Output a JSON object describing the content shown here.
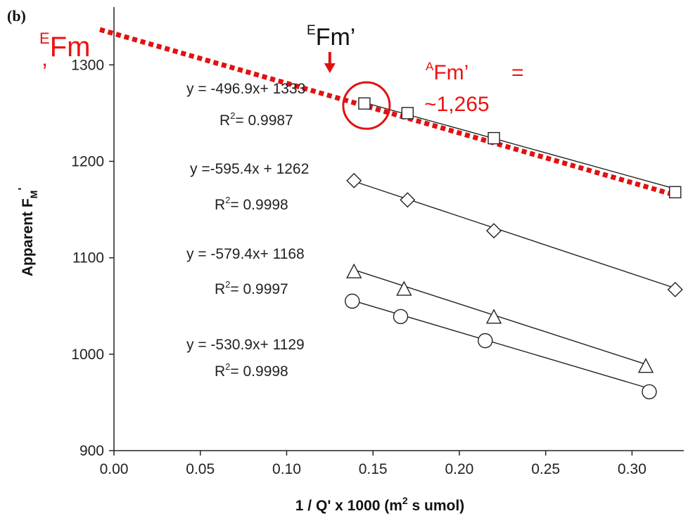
{
  "panel_label": "(b)",
  "chart_data": {
    "type": "scatter",
    "xlabel": "1 / Q' x 1000 (m",
    "xlabel_sup": "2",
    "xlabel_tail": " s umol)",
    "ylabel": "Apparent F",
    "ylabel_sub": "M",
    "ylabel_sup": "'",
    "xlim": [
      0.0,
      0.33
    ],
    "ylim": [
      900,
      1360
    ],
    "xticks": [
      "0.00",
      "0.05",
      "0.10",
      "0.15",
      "0.20",
      "0.25",
      "0.30"
    ],
    "yticks": [
      "900",
      "1000",
      "1100",
      "1200",
      "1300"
    ],
    "grid": false,
    "series": [
      {
        "marker": "square",
        "points": [
          [
            0.145,
            1260
          ],
          [
            0.17,
            1250
          ],
          [
            0.22,
            1224
          ],
          [
            0.325,
            1168
          ]
        ],
        "slope": -496.9,
        "intercept": 1333,
        "fit_x": [
          0.145,
          0.325
        ],
        "equation": "y = -496.9x+ 1333",
        "r2_label": "R",
        "r2_sup": "2",
        "r2_value": "= 0.9987"
      },
      {
        "marker": "diamond",
        "points": [
          [
            0.139,
            1180
          ],
          [
            0.17,
            1160
          ],
          [
            0.22,
            1128
          ],
          [
            0.325,
            1067
          ]
        ],
        "slope": -595.4,
        "intercept": 1262,
        "fit_x": [
          0.139,
          0.325
        ],
        "equation": "y =-595.4x + 1262",
        "r2_label": "R",
        "r2_sup": "2",
        "r2_value": "= 0.9998"
      },
      {
        "marker": "triangle",
        "points": [
          [
            0.139,
            1085
          ],
          [
            0.168,
            1067
          ],
          [
            0.22,
            1038
          ],
          [
            0.308,
            987
          ]
        ],
        "slope": -579.4,
        "intercept": 1168,
        "fit_x": [
          0.139,
          0.308
        ],
        "equation": "y = -579.4x+ 1168",
        "r2_label": "R",
        "r2_sup": "2",
        "r2_value": "= 0.9997"
      },
      {
        "marker": "circle",
        "points": [
          [
            0.138,
            1055
          ],
          [
            0.166,
            1039
          ],
          [
            0.215,
            1014
          ],
          [
            0.31,
            961
          ]
        ],
        "slope": -530.9,
        "intercept": 1129,
        "fit_x": [
          0.138,
          0.31
        ],
        "equation": "y = -530.9x+ 1129",
        "r2_label": "R",
        "r2_sup": "2",
        "r2_value": "= 0.9998"
      }
    ],
    "annotations": {
      "efm_prime": {
        "sup": "E",
        "text": "Fm’"
      },
      "efm_left": {
        "sup": "E",
        "text": "Fm",
        "tail": "’"
      },
      "afm": {
        "sup": "A",
        "text": "Fm’",
        "eq": "=",
        "value": "~1,265"
      },
      "extrapolation": {
        "x": [
          0.0,
          0.325
        ],
        "y": [
          1333,
          1165
        ],
        "color": "#e11111"
      },
      "highlight_point": [
        0.145,
        1260
      ],
      "arrow_x": 0.125
    }
  }
}
